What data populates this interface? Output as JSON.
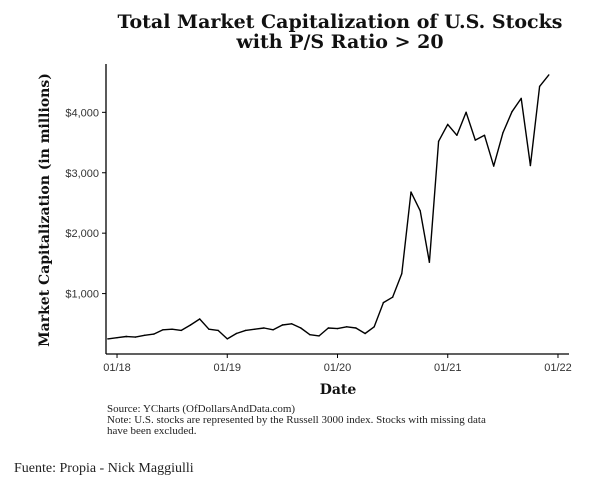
{
  "chart_data": {
    "type": "line",
    "title_lines": [
      "Total Market Capitalization of U.S. Stocks",
      "with P/S Ratio > 20"
    ],
    "xlabel": "Date",
    "ylabel": "Market Capitalization (in millions)",
    "x_ticks": [
      {
        "t": 0,
        "label": "01/18"
      },
      {
        "t": 12,
        "label": "01/19"
      },
      {
        "t": 24,
        "label": "01/20"
      },
      {
        "t": 36,
        "label": "01/21"
      },
      {
        "t": 48,
        "label": "01/22"
      }
    ],
    "y_ticks": [
      {
        "value": 1000,
        "label": "$1,000"
      },
      {
        "value": 2000,
        "label": "$2,000"
      },
      {
        "value": 3000,
        "label": "$3,000"
      },
      {
        "value": 4000,
        "label": "$4,000"
      }
    ],
    "xlim": [
      -1.2,
      49.2
    ],
    "ylim": [
      0,
      4800
    ],
    "series": [
      {
        "name": "Total Market Capitalization",
        "color": "#000000",
        "x": [
          -1,
          0,
          1,
          2,
          3,
          4,
          5,
          6,
          7,
          8,
          9,
          10,
          11,
          12,
          13,
          14,
          15,
          16,
          17,
          18,
          19,
          20,
          21,
          22,
          23,
          24,
          25,
          26,
          27,
          28,
          29,
          30,
          31,
          32,
          33,
          34,
          35,
          36,
          37,
          38,
          39,
          40,
          41,
          42,
          43,
          44,
          45,
          46,
          47
        ],
        "values": [
          250,
          270,
          290,
          280,
          310,
          330,
          400,
          410,
          390,
          480,
          580,
          410,
          390,
          250,
          340,
          390,
          410,
          430,
          400,
          480,
          500,
          430,
          320,
          300,
          430,
          420,
          450,
          430,
          340,
          450,
          850,
          940,
          1330,
          2680,
          2370,
          1520,
          3520,
          3800,
          3620,
          4000,
          3540,
          3620,
          3110,
          3660,
          4010,
          4230,
          3120,
          4430,
          4620
        ]
      }
    ]
  },
  "notes": {
    "source": "Source: YCharts (OfDollarsAndData.com)",
    "note_line1": "Note: U.S. stocks are represented by the Russell 3000 index. Stocks with missing data",
    "note_line2": "have been excluded."
  },
  "footer": {
    "credit": "Fuente: Propia - Nick Maggiulli"
  }
}
